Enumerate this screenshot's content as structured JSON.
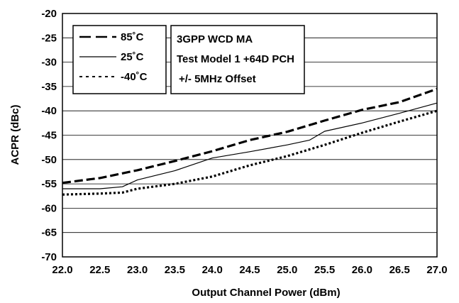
{
  "chart_data": {
    "type": "line",
    "xlabel": "Output Channel Power (dBm)",
    "ylabel": "ACPR (dBc)",
    "xlim": [
      22.0,
      27.0
    ],
    "ylim": [
      -70,
      -20
    ],
    "xticks": [
      "22.0",
      "22.5",
      "23.0",
      "23.5",
      "24.0",
      "24.5",
      "25.0",
      "25.5",
      "26.0",
      "26.5",
      "27.0"
    ],
    "yticks": [
      "-20",
      "-25",
      "-30",
      "-35",
      "-40",
      "-45",
      "-50",
      "-55",
      "-60",
      "-65",
      "-70"
    ],
    "grid": "horizontal",
    "legend_placement": "top-left",
    "annotation": [
      "3GPP WCD MA",
      "Test Model 1 +64D PCH",
      "+/- 5MHz Offset"
    ],
    "series": [
      {
        "name": "85˚C",
        "style": "dashed-thick",
        "x": [
          22.0,
          22.5,
          23.0,
          23.5,
          24.0,
          24.5,
          25.0,
          25.5,
          26.0,
          26.5,
          27.0
        ],
        "y": [
          -54.8,
          -53.8,
          -52.2,
          -50.3,
          -48.3,
          -46.0,
          -44.3,
          -42.0,
          -39.8,
          -38.2,
          -35.5
        ]
      },
      {
        "name": "25˚C",
        "style": "solid-thin",
        "x": [
          22.0,
          22.5,
          22.8,
          23.0,
          23.5,
          24.0,
          24.5,
          25.0,
          25.3,
          25.5,
          26.0,
          26.5,
          27.0
        ],
        "y": [
          -56.0,
          -56.0,
          -55.6,
          -54.2,
          -52.3,
          -49.7,
          -48.4,
          -47.0,
          -46.0,
          -44.2,
          -42.5,
          -40.5,
          -38.4
        ]
      },
      {
        "name": "-40˚C",
        "style": "dotted-thick",
        "x": [
          22.0,
          22.5,
          22.8,
          23.0,
          23.5,
          24.0,
          24.5,
          25.0,
          25.5,
          26.0,
          26.5,
          27.0
        ],
        "y": [
          -57.2,
          -57.0,
          -56.8,
          -56.0,
          -55.0,
          -53.5,
          -51.2,
          -49.3,
          -47.0,
          -44.5,
          -42.2,
          -40.0
        ]
      }
    ]
  }
}
